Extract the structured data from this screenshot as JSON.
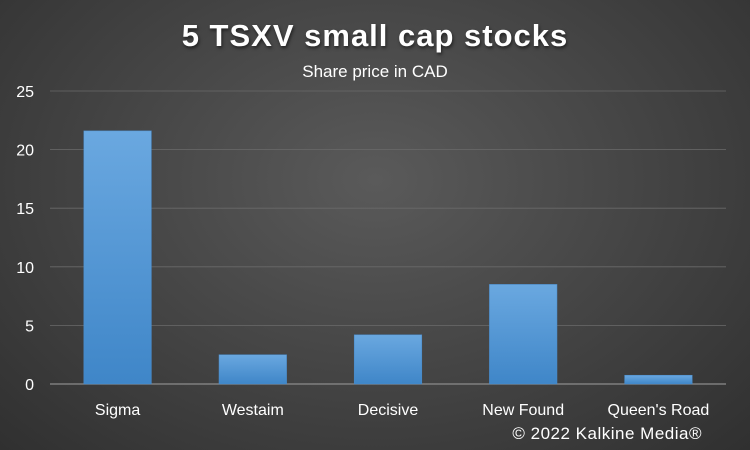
{
  "chart_data": {
    "type": "bar",
    "title": "5 TSXV small cap stocks",
    "subtitle": "Share price in CAD",
    "categories": [
      "Sigma",
      "Westaim",
      "Decisive",
      "New Found",
      "Queen's Road"
    ],
    "values": [
      21.6,
      2.5,
      4.2,
      8.5,
      0.75
    ],
    "ylim": [
      0,
      25
    ],
    "yticks": [
      "0",
      "5",
      "10",
      "15",
      "20",
      "25"
    ],
    "xlabel": "",
    "ylabel": "",
    "grid": true,
    "bar_color": "#5b9bd5",
    "credit": "© 2022 Kalkine Media®"
  }
}
